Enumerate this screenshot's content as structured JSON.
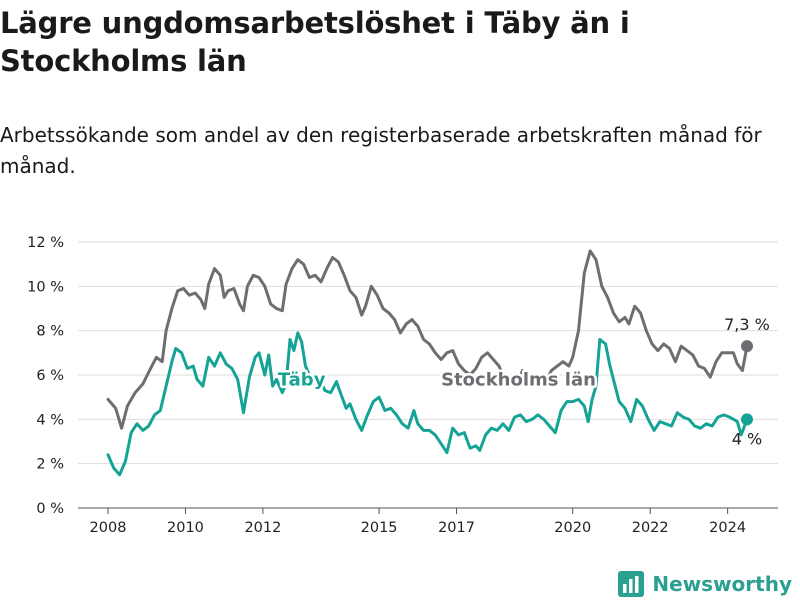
{
  "header": {
    "title": "Lägre ungdomsarbetslöshet i Täby än i Stockholms län",
    "subtitle": "Arbetssökande som andel av den registerbaserade arbetskraften månad för månad."
  },
  "brand": {
    "name": "Newsworthy",
    "icon": "bar-chart-logo-icon",
    "color": "#2aa090"
  },
  "chart_data": {
    "type": "line",
    "title": "Lägre ungdomsarbetslöshet i Täby än i Stockholms län",
    "subtitle": "Arbetssökande som andel av den registerbaserade arbetskraften månad för månad.",
    "xlabel": "",
    "ylabel": "",
    "x_range": [
      2008,
      2024.5
    ],
    "ylim": [
      0,
      12
    ],
    "y_ticks": [
      0,
      2,
      4,
      6,
      8,
      10,
      12
    ],
    "y_tick_labels": [
      "0 %",
      "2 %",
      "4 %",
      "6 %",
      "8 %",
      "10 %",
      "12 %"
    ],
    "x_tick_values": [
      2008,
      2010,
      2012,
      2015,
      2017,
      2020,
      2022,
      2024
    ],
    "x_tick_labels": [
      "2008",
      "2010",
      "2012",
      "2015",
      "2017",
      "2020",
      "2022",
      "2024"
    ],
    "grid": true,
    "series": [
      {
        "name": "Stockholms län",
        "color": "#6e6e72",
        "end_label": "7,3 %",
        "points": [
          [
            2008.0,
            4.9
          ],
          [
            2008.2,
            4.5
          ],
          [
            2008.35,
            3.6
          ],
          [
            2008.5,
            4.6
          ],
          [
            2008.7,
            5.2
          ],
          [
            2008.9,
            5.6
          ],
          [
            2009.1,
            6.3
          ],
          [
            2009.25,
            6.8
          ],
          [
            2009.4,
            6.6
          ],
          [
            2009.5,
            8.0
          ],
          [
            2009.65,
            9.0
          ],
          [
            2009.8,
            9.8
          ],
          [
            2009.95,
            9.9
          ],
          [
            2010.1,
            9.6
          ],
          [
            2010.25,
            9.7
          ],
          [
            2010.4,
            9.4
          ],
          [
            2010.5,
            9.0
          ],
          [
            2010.6,
            10.1
          ],
          [
            2010.75,
            10.8
          ],
          [
            2010.9,
            10.5
          ],
          [
            2011.0,
            9.5
          ],
          [
            2011.1,
            9.8
          ],
          [
            2011.25,
            9.9
          ],
          [
            2011.4,
            9.2
          ],
          [
            2011.5,
            8.9
          ],
          [
            2011.6,
            10.0
          ],
          [
            2011.75,
            10.5
          ],
          [
            2011.9,
            10.4
          ],
          [
            2012.05,
            10.0
          ],
          [
            2012.2,
            9.2
          ],
          [
            2012.35,
            9.0
          ],
          [
            2012.5,
            8.9
          ],
          [
            2012.6,
            10.1
          ],
          [
            2012.75,
            10.8
          ],
          [
            2012.9,
            11.2
          ],
          [
            2013.05,
            11.0
          ],
          [
            2013.2,
            10.4
          ],
          [
            2013.35,
            10.5
          ],
          [
            2013.5,
            10.2
          ],
          [
            2013.65,
            10.8
          ],
          [
            2013.8,
            11.3
          ],
          [
            2013.95,
            11.1
          ],
          [
            2014.1,
            10.5
          ],
          [
            2014.25,
            9.8
          ],
          [
            2014.4,
            9.5
          ],
          [
            2014.55,
            8.7
          ],
          [
            2014.65,
            9.1
          ],
          [
            2014.8,
            10.0
          ],
          [
            2014.95,
            9.6
          ],
          [
            2015.1,
            9.0
          ],
          [
            2015.25,
            8.8
          ],
          [
            2015.4,
            8.5
          ],
          [
            2015.55,
            7.9
          ],
          [
            2015.7,
            8.3
          ],
          [
            2015.85,
            8.5
          ],
          [
            2016.0,
            8.2
          ],
          [
            2016.15,
            7.6
          ],
          [
            2016.3,
            7.4
          ],
          [
            2016.45,
            7.0
          ],
          [
            2016.6,
            6.7
          ],
          [
            2016.75,
            7.0
          ],
          [
            2016.9,
            7.1
          ],
          [
            2017.05,
            6.5
          ],
          [
            2017.2,
            6.2
          ],
          [
            2017.35,
            6.0
          ],
          [
            2017.5,
            6.3
          ],
          [
            2017.65,
            6.8
          ],
          [
            2017.8,
            7.0
          ],
          [
            2017.95,
            6.7
          ],
          [
            2018.1,
            6.4
          ],
          [
            2018.25,
            5.7
          ],
          [
            2018.4,
            5.6
          ],
          [
            2018.55,
            5.5
          ],
          [
            2018.7,
            6.2
          ],
          [
            2018.85,
            5.9
          ],
          [
            2019.0,
            5.8
          ],
          [
            2019.15,
            5.7
          ],
          [
            2019.3,
            5.7
          ],
          [
            2019.45,
            6.2
          ],
          [
            2019.6,
            6.4
          ],
          [
            2019.75,
            6.6
          ],
          [
            2019.9,
            6.4
          ],
          [
            2020.0,
            6.8
          ],
          [
            2020.15,
            8.0
          ],
          [
            2020.3,
            10.6
          ],
          [
            2020.45,
            11.6
          ],
          [
            2020.6,
            11.2
          ],
          [
            2020.75,
            10.0
          ],
          [
            2020.9,
            9.5
          ],
          [
            2021.05,
            8.8
          ],
          [
            2021.2,
            8.4
          ],
          [
            2021.35,
            8.6
          ],
          [
            2021.45,
            8.3
          ],
          [
            2021.6,
            9.1
          ],
          [
            2021.75,
            8.8
          ],
          [
            2021.9,
            8.0
          ],
          [
            2022.05,
            7.4
          ],
          [
            2022.2,
            7.1
          ],
          [
            2022.35,
            7.4
          ],
          [
            2022.5,
            7.2
          ],
          [
            2022.65,
            6.6
          ],
          [
            2022.8,
            7.3
          ],
          [
            2022.95,
            7.1
          ],
          [
            2023.1,
            6.9
          ],
          [
            2023.25,
            6.4
          ],
          [
            2023.4,
            6.3
          ],
          [
            2023.55,
            5.9
          ],
          [
            2023.7,
            6.6
          ],
          [
            2023.85,
            7.0
          ],
          [
            2024.0,
            7.0
          ],
          [
            2024.15,
            7.0
          ],
          [
            2024.25,
            6.5
          ],
          [
            2024.38,
            6.2
          ],
          [
            2024.5,
            7.3
          ]
        ]
      },
      {
        "name": "Täby",
        "color": "#14a395",
        "end_label": "4 %",
        "points": [
          [
            2008.0,
            2.4
          ],
          [
            2008.15,
            1.8
          ],
          [
            2008.3,
            1.5
          ],
          [
            2008.45,
            2.1
          ],
          [
            2008.6,
            3.4
          ],
          [
            2008.75,
            3.8
          ],
          [
            2008.9,
            3.5
          ],
          [
            2009.05,
            3.7
          ],
          [
            2009.2,
            4.2
          ],
          [
            2009.35,
            4.4
          ],
          [
            2009.5,
            5.5
          ],
          [
            2009.65,
            6.6
          ],
          [
            2009.75,
            7.2
          ],
          [
            2009.9,
            7.0
          ],
          [
            2010.05,
            6.3
          ],
          [
            2010.2,
            6.4
          ],
          [
            2010.3,
            5.8
          ],
          [
            2010.45,
            5.5
          ],
          [
            2010.6,
            6.8
          ],
          [
            2010.75,
            6.4
          ],
          [
            2010.9,
            7.0
          ],
          [
            2011.05,
            6.5
          ],
          [
            2011.2,
            6.3
          ],
          [
            2011.35,
            5.8
          ],
          [
            2011.5,
            4.3
          ],
          [
            2011.65,
            5.9
          ],
          [
            2011.8,
            6.8
          ],
          [
            2011.9,
            7.0
          ],
          [
            2012.05,
            6.0
          ],
          [
            2012.15,
            6.9
          ],
          [
            2012.25,
            5.5
          ],
          [
            2012.35,
            5.8
          ],
          [
            2012.5,
            5.2
          ],
          [
            2012.6,
            5.6
          ],
          [
            2012.7,
            7.6
          ],
          [
            2012.8,
            7.1
          ],
          [
            2012.9,
            7.9
          ],
          [
            2013.0,
            7.5
          ],
          [
            2013.1,
            6.4
          ],
          [
            2013.2,
            6.0
          ],
          [
            2013.35,
            5.6
          ],
          [
            2013.5,
            5.7
          ],
          [
            2013.6,
            5.3
          ],
          [
            2013.75,
            5.2
          ],
          [
            2013.9,
            5.7
          ],
          [
            2014.0,
            5.2
          ],
          [
            2014.15,
            4.5
          ],
          [
            2014.25,
            4.7
          ],
          [
            2014.4,
            4.0
          ],
          [
            2014.55,
            3.5
          ],
          [
            2014.7,
            4.2
          ],
          [
            2014.85,
            4.8
          ],
          [
            2015.0,
            5.0
          ],
          [
            2015.15,
            4.4
          ],
          [
            2015.3,
            4.5
          ],
          [
            2015.45,
            4.2
          ],
          [
            2015.6,
            3.8
          ],
          [
            2015.75,
            3.6
          ],
          [
            2015.9,
            4.4
          ],
          [
            2016.0,
            3.8
          ],
          [
            2016.15,
            3.5
          ],
          [
            2016.3,
            3.5
          ],
          [
            2016.45,
            3.3
          ],
          [
            2016.6,
            2.9
          ],
          [
            2016.75,
            2.5
          ],
          [
            2016.9,
            3.6
          ],
          [
            2017.05,
            3.3
          ],
          [
            2017.2,
            3.4
          ],
          [
            2017.35,
            2.7
          ],
          [
            2017.5,
            2.8
          ],
          [
            2017.6,
            2.6
          ],
          [
            2017.75,
            3.3
          ],
          [
            2017.9,
            3.6
          ],
          [
            2018.05,
            3.5
          ],
          [
            2018.2,
            3.8
          ],
          [
            2018.35,
            3.5
          ],
          [
            2018.5,
            4.1
          ],
          [
            2018.65,
            4.2
          ],
          [
            2018.8,
            3.9
          ],
          [
            2018.95,
            4.0
          ],
          [
            2019.1,
            4.2
          ],
          [
            2019.25,
            4.0
          ],
          [
            2019.4,
            3.7
          ],
          [
            2019.55,
            3.4
          ],
          [
            2019.7,
            4.4
          ],
          [
            2019.85,
            4.8
          ],
          [
            2020.0,
            4.8
          ],
          [
            2020.15,
            4.9
          ],
          [
            2020.3,
            4.6
          ],
          [
            2020.4,
            3.9
          ],
          [
            2020.5,
            4.9
          ],
          [
            2020.6,
            5.5
          ],
          [
            2020.7,
            7.6
          ],
          [
            2020.85,
            7.4
          ],
          [
            2020.95,
            6.5
          ],
          [
            2021.05,
            5.8
          ],
          [
            2021.2,
            4.8
          ],
          [
            2021.35,
            4.5
          ],
          [
            2021.5,
            3.9
          ],
          [
            2021.65,
            4.9
          ],
          [
            2021.8,
            4.6
          ],
          [
            2021.95,
            4.0
          ],
          [
            2022.1,
            3.5
          ],
          [
            2022.25,
            3.9
          ],
          [
            2022.4,
            3.8
          ],
          [
            2022.55,
            3.7
          ],
          [
            2022.7,
            4.3
          ],
          [
            2022.85,
            4.1
          ],
          [
            2023.0,
            4.0
          ],
          [
            2023.15,
            3.7
          ],
          [
            2023.3,
            3.6
          ],
          [
            2023.45,
            3.8
          ],
          [
            2023.6,
            3.7
          ],
          [
            2023.75,
            4.1
          ],
          [
            2023.9,
            4.2
          ],
          [
            2024.05,
            4.1
          ],
          [
            2024.15,
            4.0
          ],
          [
            2024.25,
            3.9
          ],
          [
            2024.35,
            3.3
          ],
          [
            2024.5,
            4.0
          ]
        ]
      }
    ],
    "annotations": [
      {
        "text": "Täby",
        "x": 2013.0,
        "y": 5.8,
        "series": "Täby"
      },
      {
        "text": "Stockholms län",
        "x": 2018.6,
        "y": 5.8,
        "series": "Stockholms län"
      }
    ]
  }
}
